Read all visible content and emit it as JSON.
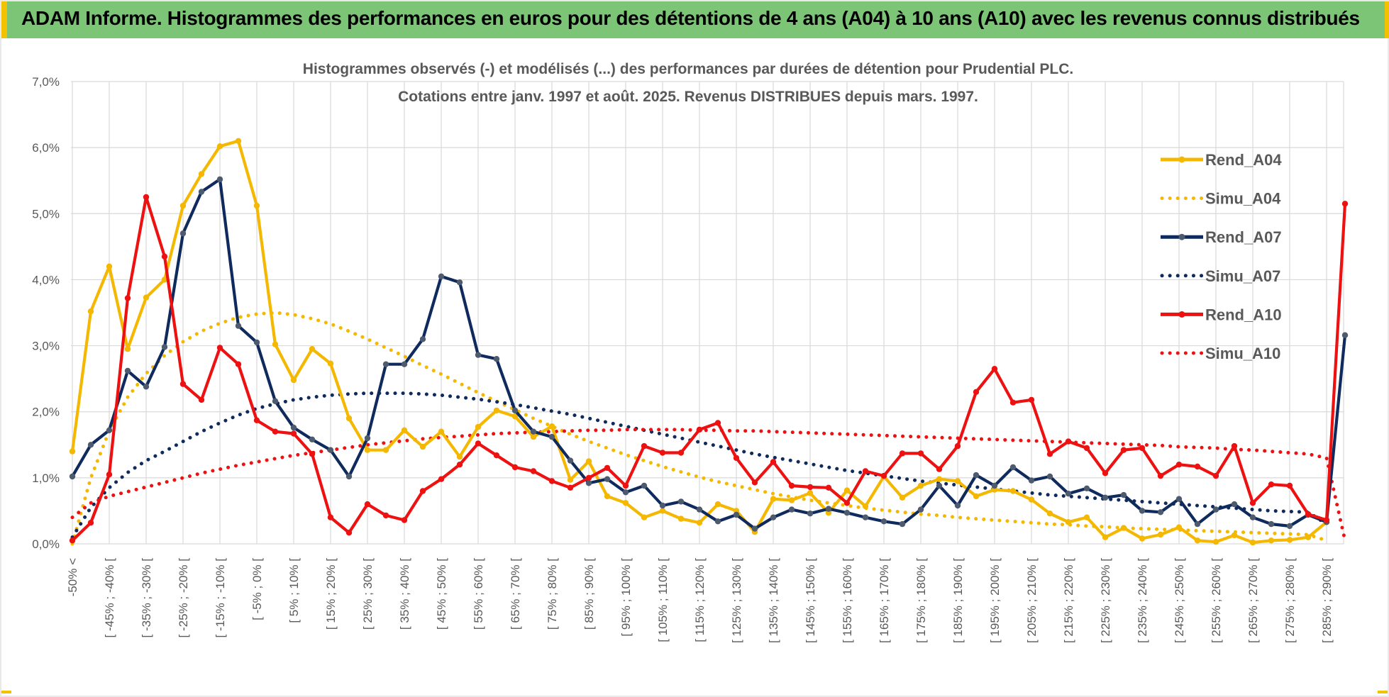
{
  "banner": {
    "title": "ADAM Informe. Histogrammes des performances en euros pour des détentions de 4 ans (A04) à 10 ans (A10) avec les revenus connus distribués"
  },
  "chart_data": {
    "type": "line",
    "title_line1": "Histogrammes observés (-) et modélisés (...) des performances par durées de détention pour Prudential PLC.",
    "title_line2": "Cotations entre janv. 1997 et août. 2025. Revenus DISTRIBUES depuis mars. 1997.",
    "y_ticks": [
      "0,0%",
      "1,0%",
      "2,0%",
      "3,0%",
      "4,0%",
      "5,0%",
      "6,0%",
      "7,0%"
    ],
    "ylim": [
      0,
      7
    ],
    "grid": true,
    "legend_position": "right",
    "x_tick_labels": [
      "-50% <",
      "[ -45% ; -40% [",
      "[ -35% ; -30% [",
      "[ -25% ; -20% [",
      "[ -15% ; -10% [",
      "[ -5% ; 0% [",
      "[ 5% ; 10% [",
      "[ 15% ; 20% [",
      "[ 25% ; 30% [",
      "[ 35% ; 40% [",
      "[ 45% ; 50% [",
      "[ 55% ; 60% [",
      "[ 65% ; 70% [",
      "[ 75% ; 80% [",
      "[ 85% ; 90% [",
      "[ 95% ; 100% [",
      "[ 105% ; 110% [",
      "[ 115% ; 120% [",
      "[ 125% ; 130% [",
      "[ 135% ; 140% [",
      "[ 145% ; 150% [",
      "[ 155% ; 160% [",
      "[ 165% ; 170% [",
      "[ 175% ; 180% [",
      "[ 185% ; 190% [",
      "[ 195% ; 200% [",
      "[ 205% ; 210% [",
      "[ 215% ; 220% [",
      "[ 225% ; 230% [",
      "[ 235% ; 240% [",
      "[ 245% ; 250% [",
      "[ 255% ; 260% [",
      "[ 265% ; 270% [",
      "[ 275% ; 280% [",
      "[ 285% ; 290% ["
    ],
    "series": [
      {
        "name": "Rend_A04",
        "style": "solid",
        "color": "#f5b800",
        "values": [
          1.4,
          3.52,
          4.2,
          2.95,
          3.73,
          4.0,
          5.12,
          5.6,
          6.02,
          6.1,
          5.12,
          3.02,
          2.48,
          2.95,
          2.73,
          1.9,
          1.42,
          1.42,
          1.72,
          1.47,
          1.7,
          1.32,
          1.77,
          2.02,
          1.93,
          1.62,
          1.78,
          0.97,
          1.25,
          0.72,
          0.62,
          0.4,
          0.5,
          0.38,
          0.32,
          0.6,
          0.5,
          0.18,
          0.68,
          0.66,
          0.77,
          0.47,
          0.81,
          0.57,
          1.02,
          0.7,
          0.88,
          0.98,
          0.95,
          0.72,
          0.82,
          0.8,
          0.67,
          0.46,
          0.33,
          0.4,
          0.1,
          0.24,
          0.08,
          0.14,
          0.25,
          0.05,
          0.03,
          0.13,
          0.02,
          0.05,
          0.06,
          0.1,
          0.33
        ]
      },
      {
        "name": "Simu_A04",
        "style": "dotted",
        "color": "#f5b800",
        "values": [
          0.0,
          1.0,
          1.71,
          2.22,
          2.58,
          2.85,
          3.06,
          3.22,
          3.34,
          3.43,
          3.48,
          3.5,
          3.47,
          3.41,
          3.33,
          3.22,
          3.1,
          2.97,
          2.84,
          2.7,
          2.57,
          2.43,
          2.29,
          2.16,
          2.03,
          1.9,
          1.78,
          1.66,
          1.55,
          1.45,
          1.35,
          1.26,
          1.17,
          1.09,
          1.01,
          0.94,
          0.88,
          0.82,
          0.76,
          0.71,
          0.66,
          0.62,
          0.58,
          0.54,
          0.51,
          0.48,
          0.45,
          0.43,
          0.4,
          0.38,
          0.36,
          0.34,
          0.32,
          0.3,
          0.29,
          0.27,
          0.26,
          0.24,
          0.23,
          0.22,
          0.21,
          0.2,
          0.19,
          0.18,
          0.17,
          0.16,
          0.15,
          0.14,
          0.05
        ]
      },
      {
        "name": "Rend_A07",
        "style": "solid",
        "color": "#0f2a5c",
        "values": [
          1.02,
          1.5,
          1.72,
          2.62,
          2.38,
          2.98,
          4.7,
          5.33,
          5.52,
          3.3,
          3.05,
          2.16,
          1.76,
          1.58,
          1.42,
          1.02,
          1.6,
          2.72,
          2.72,
          3.1,
          4.05,
          3.96,
          2.86,
          2.8,
          2.02,
          1.7,
          1.62,
          1.26,
          0.92,
          0.98,
          0.78,
          0.88,
          0.58,
          0.64,
          0.52,
          0.34,
          0.44,
          0.23,
          0.4,
          0.52,
          0.46,
          0.53,
          0.47,
          0.4,
          0.34,
          0.3,
          0.52,
          0.88,
          0.58,
          1.04,
          0.88,
          1.16,
          0.96,
          1.02,
          0.76,
          0.84,
          0.7,
          0.74,
          0.5,
          0.48,
          0.68,
          0.3,
          0.52,
          0.6,
          0.4,
          0.3,
          0.27,
          0.44,
          0.33,
          3.16
        ]
      },
      {
        "name": "Simu_A07",
        "style": "dotted",
        "color": "#0f2a5c",
        "values": [
          0.1,
          0.55,
          0.85,
          1.08,
          1.26,
          1.4,
          1.55,
          1.7,
          1.83,
          1.95,
          2.05,
          2.12,
          2.18,
          2.22,
          2.25,
          2.27,
          2.28,
          2.28,
          2.28,
          2.27,
          2.25,
          2.22,
          2.19,
          2.15,
          2.11,
          2.06,
          2.01,
          1.96,
          1.9,
          1.84,
          1.78,
          1.72,
          1.66,
          1.6,
          1.54,
          1.48,
          1.42,
          1.36,
          1.31,
          1.26,
          1.21,
          1.16,
          1.11,
          1.07,
          1.03,
          0.99,
          0.95,
          0.92,
          0.89,
          0.86,
          0.83,
          0.8,
          0.77,
          0.74,
          0.72,
          0.7,
          0.68,
          0.66,
          0.64,
          0.62,
          0.6,
          0.58,
          0.56,
          0.54,
          0.52,
          0.5,
          0.49,
          0.48,
          0.3
        ]
      },
      {
        "name": "Rend_A10",
        "style": "solid",
        "color": "#ee1111",
        "values": [
          0.05,
          0.32,
          1.05,
          3.72,
          5.25,
          4.35,
          2.42,
          2.18,
          2.97,
          2.72,
          1.87,
          1.7,
          1.67,
          1.36,
          0.4,
          0.17,
          0.6,
          0.43,
          0.36,
          0.8,
          0.98,
          1.2,
          1.52,
          1.34,
          1.16,
          1.1,
          0.95,
          0.85,
          1.0,
          1.15,
          0.88,
          1.48,
          1.38,
          1.38,
          1.73,
          1.83,
          1.3,
          0.93,
          1.24,
          0.88,
          0.86,
          0.85,
          0.62,
          1.1,
          1.03,
          1.37,
          1.37,
          1.13,
          1.48,
          2.3,
          2.65,
          2.14,
          2.18,
          1.36,
          1.55,
          1.45,
          1.07,
          1.42,
          1.45,
          1.03,
          1.2,
          1.17,
          1.03,
          1.48,
          0.62,
          0.9,
          0.88,
          0.45,
          0.36,
          5.15
        ]
      },
      {
        "name": "Simu_A10",
        "style": "dotted",
        "color": "#ee1111",
        "values": [
          0.4,
          0.62,
          0.72,
          0.79,
          0.86,
          0.93,
          1.0,
          1.07,
          1.13,
          1.19,
          1.24,
          1.29,
          1.34,
          1.38,
          1.42,
          1.46,
          1.5,
          1.53,
          1.56,
          1.59,
          1.61,
          1.63,
          1.65,
          1.67,
          1.68,
          1.69,
          1.7,
          1.71,
          1.72,
          1.72,
          1.73,
          1.73,
          1.73,
          1.73,
          1.72,
          1.72,
          1.71,
          1.71,
          1.7,
          1.69,
          1.68,
          1.67,
          1.66,
          1.65,
          1.64,
          1.63,
          1.62,
          1.61,
          1.6,
          1.59,
          1.58,
          1.57,
          1.56,
          1.55,
          1.54,
          1.53,
          1.52,
          1.51,
          1.5,
          1.49,
          1.47,
          1.46,
          1.45,
          1.43,
          1.42,
          1.4,
          1.38,
          1.36,
          1.3,
          0.05
        ]
      }
    ]
  }
}
